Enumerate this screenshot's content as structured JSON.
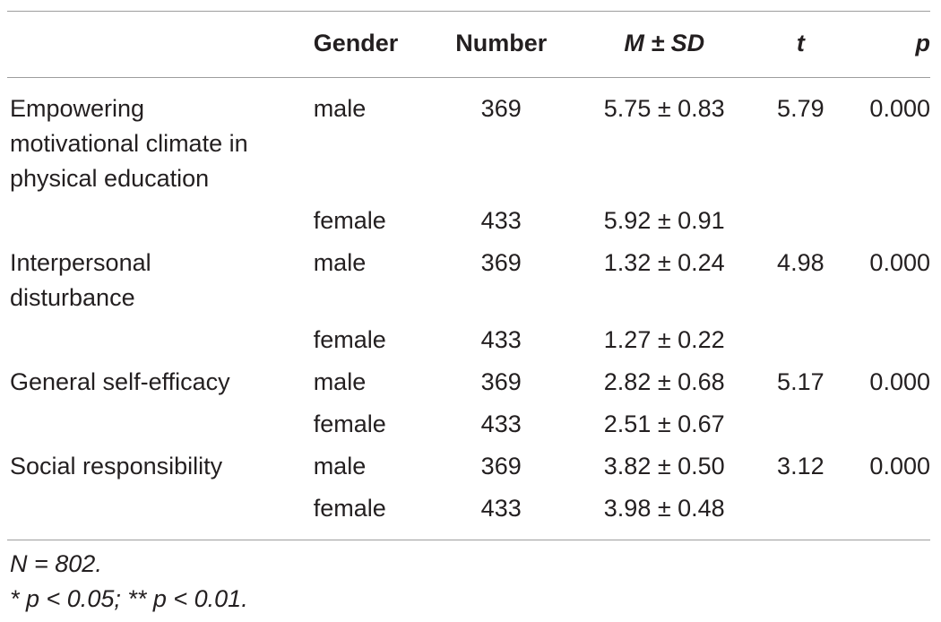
{
  "table": {
    "headers": {
      "variable": "",
      "gender": "Gender",
      "number": "Number",
      "m_sd": "M ± SD",
      "t": "t",
      "p": "p"
    },
    "rows": [
      {
        "variable_lines": [
          "Empowering",
          "motivational climate in",
          "physical education"
        ],
        "male": {
          "gender": "male",
          "number": "369",
          "m_sd": "5.75 ± 0.83",
          "t": "5.79",
          "p": "0.000"
        },
        "female": {
          "gender": "female",
          "number": "433",
          "m_sd": "5.92 ± 0.91"
        }
      },
      {
        "variable_lines": [
          "Interpersonal",
          "disturbance"
        ],
        "male": {
          "gender": "male",
          "number": "369",
          "m_sd": "1.32 ± 0.24",
          "t": "4.98",
          "p": "0.000"
        },
        "female": {
          "gender": "female",
          "number": "433",
          "m_sd": "1.27 ± 0.22"
        }
      },
      {
        "variable_lines": [
          "General self-efficacy"
        ],
        "male": {
          "gender": "male",
          "number": "369",
          "m_sd": "2.82 ± 0.68",
          "t": "5.17",
          "p": "0.000"
        },
        "female": {
          "gender": "female",
          "number": "433",
          "m_sd": "2.51 ± 0.67"
        }
      },
      {
        "variable_lines": [
          "Social responsibility"
        ],
        "male": {
          "gender": "male",
          "number": "369",
          "m_sd": "3.82 ± 0.50",
          "t": "3.12",
          "p": "0.000"
        },
        "female": {
          "gender": "female",
          "number": "433",
          "m_sd": "3.98 ± 0.48"
        }
      }
    ]
  },
  "notes": {
    "sample": "N = 802.",
    "significance": "* p < 0.05; ** p < 0.01."
  }
}
